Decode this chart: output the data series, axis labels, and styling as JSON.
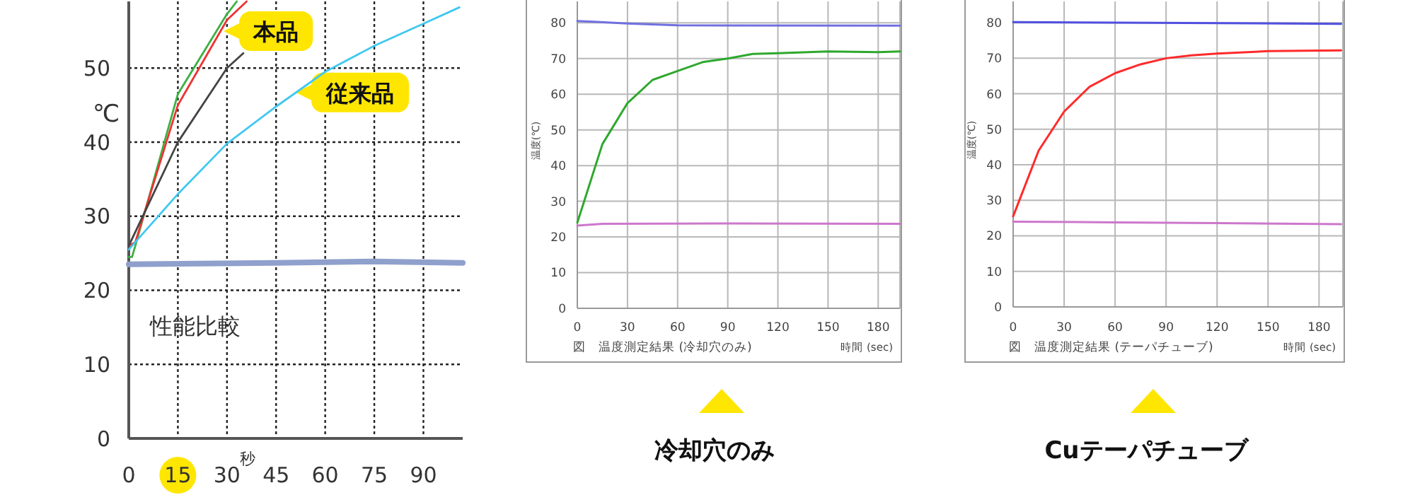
{
  "chart_data": [
    {
      "type": "line",
      "ylabel": "℃",
      "xlabel": "秒",
      "xlim": [
        0,
        102
      ],
      "ylim": [
        0,
        59
      ],
      "xticks": [
        0,
        15,
        30,
        45,
        60,
        75,
        90
      ],
      "yticks": [
        0,
        10,
        20,
        30,
        40,
        50
      ],
      "grid": true,
      "marker": "none",
      "annotations": [
        {
          "text": "本品",
          "x": 29,
          "y": 55
        },
        {
          "text": "従来品",
          "x": 51,
          "y": 46.7
        },
        "性能比較"
      ],
      "series": [
        {
          "color": "#3cb043",
          "x": [
            0,
            1,
            2,
            15,
            30,
            33
          ],
          "values": [
            24.5,
            24.5,
            26,
            46.5,
            57.3,
            59
          ]
        },
        {
          "color": "#ee3333",
          "x": [
            0,
            2,
            15,
            30,
            36
          ],
          "values": [
            26,
            26.5,
            45,
            56.5,
            59
          ]
        },
        {
          "color": "#444444",
          "x": [
            0,
            15,
            30,
            35
          ],
          "values": [
            26,
            40,
            50,
            52
          ]
        },
        {
          "color": "#40c8f0",
          "x": [
            0,
            15,
            30,
            45,
            60,
            75,
            90,
            101
          ],
          "values": [
            25.5,
            33,
            39.8,
            44.8,
            49.5,
            53,
            56,
            58.2
          ]
        },
        {
          "color": "#8fa0cc",
          "x": [
            0,
            45,
            75,
            102
          ],
          "values": [
            23.5,
            23.7,
            23.9,
            23.7
          ]
        }
      ]
    },
    {
      "type": "line",
      "ylabel": "温度(℃)",
      "xlabel": "時間 (sec)",
      "xlim": [
        0,
        193
      ],
      "ylim": [
        0,
        86
      ],
      "xticks": [
        0,
        30,
        60,
        90,
        120,
        150,
        180
      ],
      "yticks": [
        0,
        10,
        20,
        30,
        40,
        50,
        60,
        70,
        80
      ],
      "grid": true,
      "marker": "none",
      "annotations": [
        "図　温度測定結果 (冷却穴のみ)",
        "冷却穴のみ"
      ],
      "series": [
        {
          "color": "#7070e0",
          "x": [
            0,
            10,
            30,
            60,
            193
          ],
          "values": [
            80.5,
            80.3,
            79.8,
            79.3,
            79.2
          ]
        },
        {
          "color": "#2ea82e",
          "x": [
            0,
            15,
            30,
            45,
            60,
            75,
            90,
            105,
            120,
            150,
            180,
            193
          ],
          "values": [
            24,
            46,
            57.5,
            64,
            66.5,
            69,
            70,
            71.3,
            71.5,
            72,
            71.8,
            72
          ]
        },
        {
          "color": "#cc77cc",
          "x": [
            0,
            15,
            90,
            193
          ],
          "values": [
            23.2,
            23.7,
            23.8,
            23.7
          ]
        }
      ]
    },
    {
      "type": "line",
      "ylabel": "温度(℃)",
      "xlabel": "時間 (sec)",
      "xlim": [
        0,
        194
      ],
      "ylim": [
        0,
        86
      ],
      "xticks": [
        0,
        30,
        60,
        90,
        120,
        150,
        180
      ],
      "yticks": [
        0,
        10,
        20,
        30,
        40,
        50,
        60,
        70,
        80
      ],
      "grid": true,
      "marker": "none",
      "annotations": [
        "図　温度測定結果 (テーパチューブ)",
        "Cuテーパチューブ"
      ],
      "series": [
        {
          "color": "#5050e0",
          "x": [
            0,
            193
          ],
          "values": [
            80.2,
            79.7
          ]
        },
        {
          "color": "#ff2a2a",
          "x": [
            0,
            15,
            30,
            45,
            60,
            75,
            90,
            105,
            120,
            150,
            193
          ],
          "values": [
            25.5,
            44,
            55,
            62,
            65.8,
            68.3,
            70,
            70.8,
            71.3,
            72,
            72.2
          ]
        },
        {
          "color": "#cc77cc",
          "x": [
            0,
            60,
            120,
            193
          ],
          "values": [
            24,
            23.8,
            23.6,
            23.3
          ]
        }
      ]
    }
  ]
}
